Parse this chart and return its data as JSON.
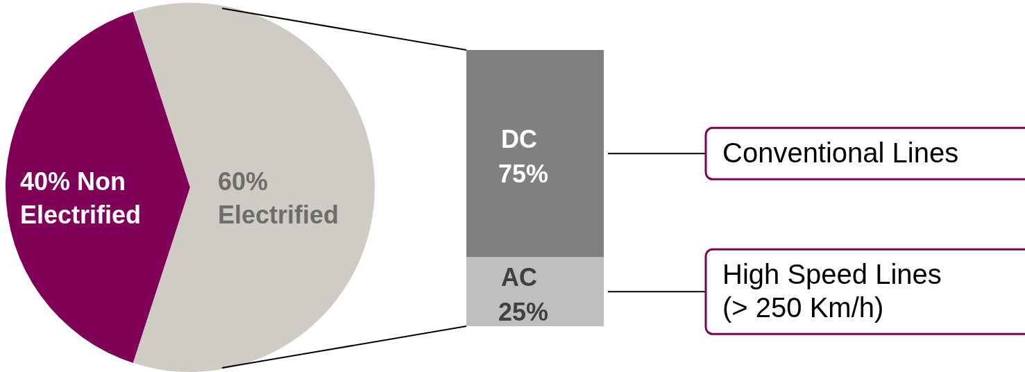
{
  "chart_data": [
    {
      "type": "pie",
      "categories": [
        "Non Electrified",
        "Electrified"
      ],
      "values": [
        40,
        60
      ],
      "colors": [
        "#800058",
        "#cfcbc5"
      ],
      "value_labels": [
        "40%",
        "60%"
      ]
    },
    {
      "type": "bar",
      "stacked": true,
      "categories": [
        null
      ],
      "series": [
        {
          "name": "AC",
          "color": "#bfbfbf",
          "values": [
            25
          ],
          "value_labels": [
            "25%"
          ]
        },
        {
          "name": "DC",
          "color": "#808080",
          "values": [
            75
          ],
          "value_labels": [
            "75%"
          ]
        }
      ],
      "annotations": [
        "High Speed Lines (> 250 Km/h)",
        "Conventional Lines"
      ]
    }
  ]
}
